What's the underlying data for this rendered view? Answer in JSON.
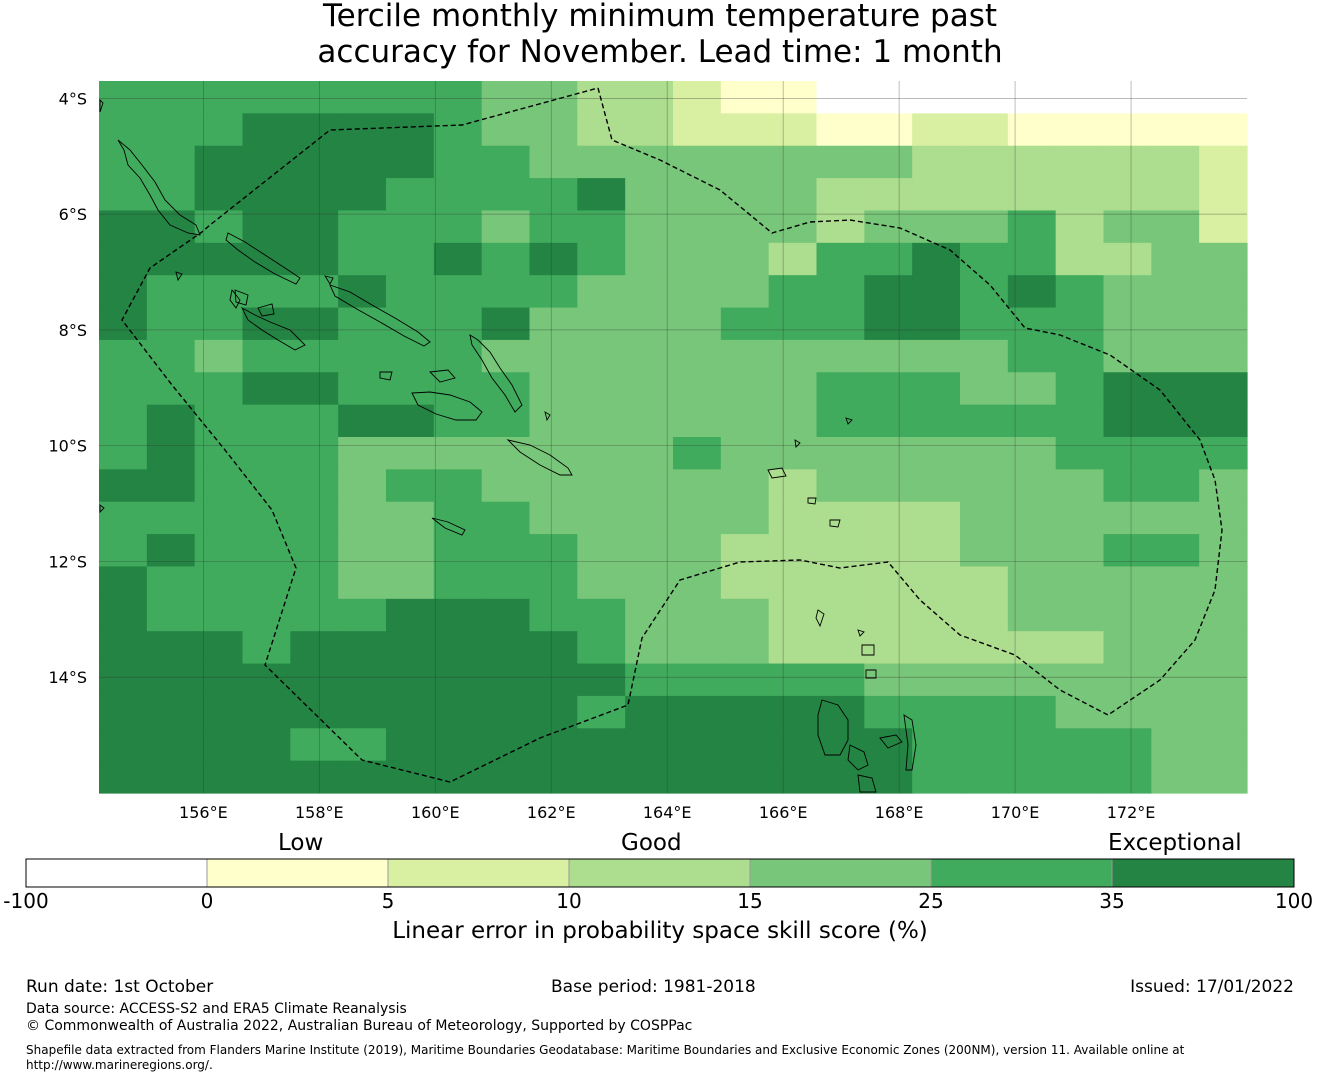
{
  "title": {
    "line1": "Tercile monthly minimum temperature past",
    "line2": "accuracy for November. Lead time: 1 month"
  },
  "map": {
    "lat_labels": [
      "4°S",
      "6°S",
      "8°S",
      "10°S",
      "12°S",
      "14°S"
    ],
    "lon_labels": [
      "156°E",
      "158°E",
      "160°E",
      "162°E",
      "164°E",
      "166°E",
      "168°E",
      "170°E",
      "172°E"
    ],
    "extent": {
      "lon": [
        154.2,
        174.0
      ],
      "lat": [
        -16.0,
        -3.7
      ]
    },
    "colors": {
      "below_0": "#ffffff",
      "0_5": "#ffffcc",
      "5_10": "#d9f0a3",
      "10_15": "#addd8e",
      "15_25": "#78c679",
      "25_35": "#41ab5d",
      "35_100": "#238443"
    },
    "grid_columns": "24 columns of 0.825° from 154.2°E",
    "grid_rows": "22 rows of 0.56° from 3.7°S",
    "skill_class_grid": [
      "555555554433211000000000",
      "555666654433222112211111",
      "556666655444444443333332",
      "556666555564444333333332",
      "665665554554444344453442",
      "666665565654443556553344",
      "655556555544445566565444",
      "655665556444455566555444",
      "554555554444444444455444",
      "555665555444444555445666",
      "565556655444444555555666",
      "565554444444544444445555",
      "665554554444443444444554",
      "555554455444443333444444",
      "565554455544433333444554",
      "655554455544433333344444",
      "655555666554443333344444",
      "666566666654443333333444",
      "666666666665555544444444",
      "666666666656666655554444",
      "666655666666666665555544",
      "666666666666666665555544"
    ]
  },
  "colorbar": {
    "words": [
      "Low",
      "Good",
      "Exceptional"
    ],
    "ticks": [
      "-100",
      "0",
      "5",
      "10",
      "15",
      "25",
      "35",
      "100"
    ],
    "label": "Linear error in probability space skill score (%)"
  },
  "footer": {
    "run_date": "Run date: 1st October",
    "base_period": "Base period: 1981-2018",
    "issued": "Issued: 17/01/2022",
    "data_source": "Data source: ACCESS-S2 and ERA5 Climate Reanalysis",
    "copyright": "© Commonwealth of Australia 2022, Australian Bureau of Meteorology, Supported by COSPPac",
    "shapefile_line1": "Shapefile data extracted from Flanders Marine Institute (2019), Maritime Boundaries Geodatabase: Maritime Boundaries and Exclusive Economic Zones (200NM), version 11. Available online at",
    "shapefile_line2": "http://www.marineregions.org/."
  }
}
